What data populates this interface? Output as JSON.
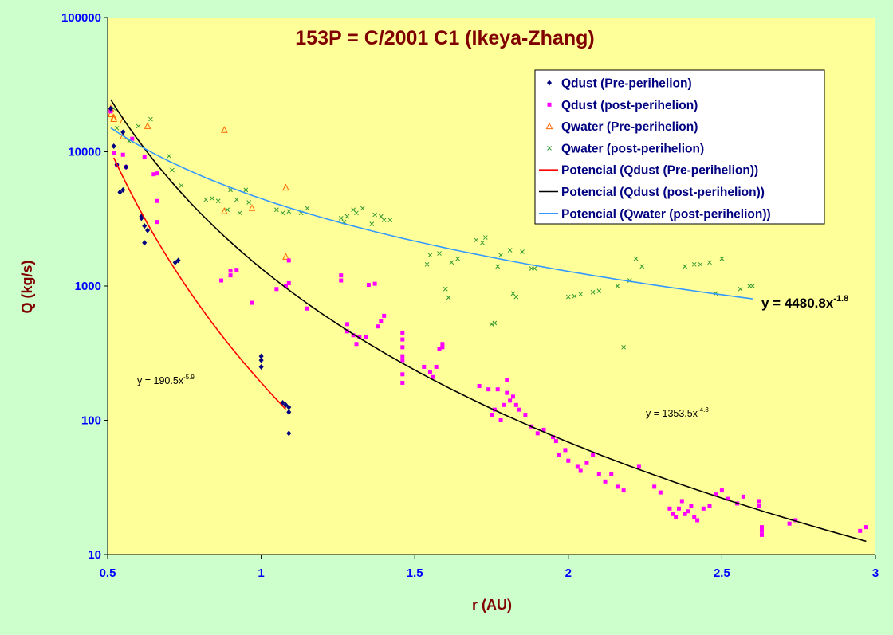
{
  "chart_data": {
    "type": "scatter",
    "title": "153P = C/2001 C1 (Ikeya-Zhang)",
    "xlabel": "r (AU)",
    "ylabel": "Q (kg/s)",
    "xlim": [
      0.5,
      3
    ],
    "ylim": [
      10,
      100000
    ],
    "yscale": "log",
    "x_ticks": [
      "0.5",
      "1",
      "1.5",
      "2",
      "2.5",
      "3"
    ],
    "y_ticks": [
      "10",
      "100",
      "1000",
      "10000",
      "100000"
    ],
    "grid": false,
    "legend_position": "top-right",
    "colors": {
      "plot_bg": "#ffff99",
      "page_bg": "#ccffcc",
      "title": "#800000",
      "axis_label": "#800000",
      "tick_label": "#0000ff",
      "qdust_pre": "#000080",
      "qdust_post": "#ff00ff",
      "qwater_pre": "#ff6600",
      "qwater_post": "#339933",
      "fit_dust_pre": "#ff0000",
      "fit_dust_post": "#000000",
      "fit_water_post": "#3399ff"
    },
    "series": [
      {
        "name": "Qdust (Pre-perihelion)",
        "marker": "diamond",
        "points": [
          [
            0.51,
            21000
          ],
          [
            0.52,
            11000
          ],
          [
            0.53,
            8000
          ],
          [
            0.54,
            5000
          ],
          [
            0.55,
            5200
          ],
          [
            0.55,
            14000
          ],
          [
            0.56,
            7700
          ],
          [
            0.61,
            3200
          ],
          [
            0.61,
            3300
          ],
          [
            0.62,
            2800
          ],
          [
            0.62,
            2100
          ],
          [
            0.63,
            2600
          ],
          [
            0.72,
            1500
          ],
          [
            0.73,
            1550
          ],
          [
            1.0,
            300
          ],
          [
            1.0,
            280
          ],
          [
            1.0,
            250
          ],
          [
            1.07,
            135
          ],
          [
            1.08,
            130
          ],
          [
            1.09,
            115
          ],
          [
            1.09,
            125
          ],
          [
            1.09,
            80
          ]
        ]
      },
      {
        "name": "Qdust (post-perihelion)",
        "marker": "square",
        "points": [
          [
            0.51,
            20000
          ],
          [
            0.52,
            9800
          ],
          [
            0.53,
            8000
          ],
          [
            0.55,
            9500
          ],
          [
            0.56,
            7700
          ],
          [
            0.58,
            12500
          ],
          [
            0.62,
            9200
          ],
          [
            0.65,
            6800
          ],
          [
            0.66,
            6900
          ],
          [
            0.66,
            4300
          ],
          [
            0.66,
            3000
          ],
          [
            0.87,
            1100
          ],
          [
            0.9,
            1200
          ],
          [
            0.9,
            1300
          ],
          [
            0.92,
            1320
          ],
          [
            0.97,
            750
          ],
          [
            1.05,
            950
          ],
          [
            1.08,
            1000
          ],
          [
            1.09,
            1050
          ],
          [
            1.09,
            1550
          ],
          [
            1.15,
            680
          ],
          [
            1.26,
            1200
          ],
          [
            1.26,
            1100
          ],
          [
            1.28,
            520
          ],
          [
            1.28,
            460
          ],
          [
            1.3,
            430
          ],
          [
            1.31,
            370
          ],
          [
            1.32,
            420
          ],
          [
            1.34,
            420
          ],
          [
            1.35,
            1020
          ],
          [
            1.37,
            1040
          ],
          [
            1.38,
            500
          ],
          [
            1.39,
            550
          ],
          [
            1.4,
            600
          ],
          [
            1.46,
            450
          ],
          [
            1.46,
            400
          ],
          [
            1.46,
            350
          ],
          [
            1.46,
            300
          ],
          [
            1.46,
            280
          ],
          [
            1.46,
            220
          ],
          [
            1.46,
            190
          ],
          [
            1.53,
            250
          ],
          [
            1.55,
            230
          ],
          [
            1.56,
            210
          ],
          [
            1.57,
            250
          ],
          [
            1.58,
            340
          ],
          [
            1.59,
            350
          ],
          [
            1.59,
            370
          ],
          [
            1.71,
            180
          ],
          [
            1.74,
            170
          ],
          [
            1.75,
            110
          ],
          [
            1.76,
            120
          ],
          [
            1.77,
            170
          ],
          [
            1.78,
            100
          ],
          [
            1.79,
            130
          ],
          [
            1.8,
            160
          ],
          [
            1.8,
            200
          ],
          [
            1.81,
            140
          ],
          [
            1.82,
            150
          ],
          [
            1.83,
            130
          ],
          [
            1.84,
            120
          ],
          [
            1.86,
            110
          ],
          [
            1.88,
            90
          ],
          [
            1.9,
            80
          ],
          [
            1.92,
            85
          ],
          [
            1.95,
            75
          ],
          [
            1.96,
            70
          ],
          [
            1.97,
            55
          ],
          [
            1.99,
            60
          ],
          [
            2.0,
            50
          ],
          [
            2.03,
            45
          ],
          [
            2.04,
            42
          ],
          [
            2.06,
            48
          ],
          [
            2.08,
            55
          ],
          [
            2.1,
            40
          ],
          [
            2.12,
            35
          ],
          [
            2.14,
            40
          ],
          [
            2.16,
            32
          ],
          [
            2.18,
            30
          ],
          [
            2.23,
            45
          ],
          [
            2.28,
            32
          ],
          [
            2.3,
            29
          ],
          [
            2.33,
            22
          ],
          [
            2.34,
            20
          ],
          [
            2.35,
            19
          ],
          [
            2.36,
            22
          ],
          [
            2.37,
            25
          ],
          [
            2.38,
            20
          ],
          [
            2.39,
            21
          ],
          [
            2.4,
            23
          ],
          [
            2.41,
            19
          ],
          [
            2.42,
            18
          ],
          [
            2.44,
            22
          ],
          [
            2.46,
            23
          ],
          [
            2.48,
            28
          ],
          [
            2.5,
            30
          ],
          [
            2.52,
            26
          ],
          [
            2.55,
            24
          ],
          [
            2.57,
            27
          ],
          [
            2.62,
            25
          ],
          [
            2.62,
            23
          ],
          [
            2.63,
            16
          ],
          [
            2.63,
            14
          ],
          [
            2.63,
            15
          ],
          [
            2.72,
            17
          ],
          [
            2.74,
            18
          ],
          [
            2.95,
            15
          ],
          [
            2.97,
            16
          ]
        ]
      },
      {
        "name": "Qwater (Pre-perihelion)",
        "marker": "triangle",
        "points": [
          [
            0.51,
            21000
          ],
          [
            0.51,
            19000
          ],
          [
            0.52,
            18000
          ],
          [
            0.52,
            17500
          ],
          [
            0.55,
            17000
          ],
          [
            0.55,
            13000
          ],
          [
            0.63,
            15500
          ],
          [
            0.88,
            14500
          ],
          [
            0.88,
            3600
          ],
          [
            0.97,
            3800
          ],
          [
            1.08,
            5400
          ],
          [
            1.08,
            1650
          ]
        ]
      },
      {
        "name": "Qwater (post-perihelion)",
        "marker": "x",
        "points": [
          [
            0.52,
            21000
          ],
          [
            0.53,
            15000
          ],
          [
            0.57,
            12000
          ],
          [
            0.6,
            15500
          ],
          [
            0.64,
            17500
          ],
          [
            0.7,
            9300
          ],
          [
            0.71,
            7300
          ],
          [
            0.74,
            5600
          ],
          [
            0.82,
            4400
          ],
          [
            0.84,
            4500
          ],
          [
            0.86,
            4300
          ],
          [
            0.89,
            3700
          ],
          [
            0.9,
            5200
          ],
          [
            0.92,
            4400
          ],
          [
            0.93,
            3500
          ],
          [
            0.95,
            5200
          ],
          [
            0.96,
            4200
          ],
          [
            1.05,
            3700
          ],
          [
            1.07,
            3500
          ],
          [
            1.09,
            3600
          ],
          [
            1.13,
            3500
          ],
          [
            1.15,
            3800
          ],
          [
            1.26,
            3200
          ],
          [
            1.27,
            3000
          ],
          [
            1.28,
            3300
          ],
          [
            1.3,
            3700
          ],
          [
            1.31,
            3500
          ],
          [
            1.33,
            3800
          ],
          [
            1.36,
            2900
          ],
          [
            1.37,
            3400
          ],
          [
            1.39,
            3300
          ],
          [
            1.4,
            3100
          ],
          [
            1.42,
            3100
          ],
          [
            1.54,
            1450
          ],
          [
            1.55,
            1700
          ],
          [
            1.58,
            1750
          ],
          [
            1.6,
            950
          ],
          [
            1.61,
            820
          ],
          [
            1.62,
            1500
          ],
          [
            1.64,
            1600
          ],
          [
            1.7,
            2200
          ],
          [
            1.72,
            2100
          ],
          [
            1.73,
            2300
          ],
          [
            1.75,
            520
          ],
          [
            1.76,
            530
          ],
          [
            1.77,
            1400
          ],
          [
            1.78,
            1700
          ],
          [
            1.81,
            1850
          ],
          [
            1.82,
            880
          ],
          [
            1.83,
            830
          ],
          [
            1.85,
            1800
          ],
          [
            1.88,
            1350
          ],
          [
            1.89,
            1350
          ],
          [
            2.0,
            830
          ],
          [
            2.02,
            840
          ],
          [
            2.04,
            870
          ],
          [
            2.08,
            900
          ],
          [
            2.1,
            920
          ],
          [
            2.16,
            1000
          ],
          [
            2.18,
            350
          ],
          [
            2.2,
            1100
          ],
          [
            2.22,
            1600
          ],
          [
            2.24,
            1400
          ],
          [
            2.38,
            1400
          ],
          [
            2.41,
            1450
          ],
          [
            2.43,
            1450
          ],
          [
            2.46,
            1500
          ],
          [
            2.48,
            880
          ],
          [
            2.5,
            1600
          ],
          [
            2.56,
            950
          ],
          [
            2.59,
            1000
          ],
          [
            2.6,
            1000
          ]
        ]
      },
      {
        "name": "Potencial (Qdust (Pre-perihelion))",
        "fit": {
          "a": 190.5,
          "b": -5.9,
          "x_range": [
            0.52,
            1.08
          ]
        }
      },
      {
        "name": "Potencial (Qdust (post-perihelion))",
        "fit": {
          "a": 1353.5,
          "b": -4.3,
          "x_range": [
            0.51,
            2.97
          ]
        }
      },
      {
        "name": "Potencial (Qwater (post-perihelion))",
        "fit": {
          "a": 4480.8,
          "b": -1.8,
          "x_range": [
            0.51,
            2.6
          ]
        }
      }
    ],
    "annotations": {
      "fit_dust_pre": {
        "prefix": "y = 190.5x",
        "exp": "-5.9"
      },
      "fit_dust_post": {
        "prefix": "y = 1353.5x",
        "exp": "-4.3"
      },
      "fit_water_post": {
        "prefix": "y = 4480.8x",
        "exp": "-1.8"
      }
    }
  }
}
